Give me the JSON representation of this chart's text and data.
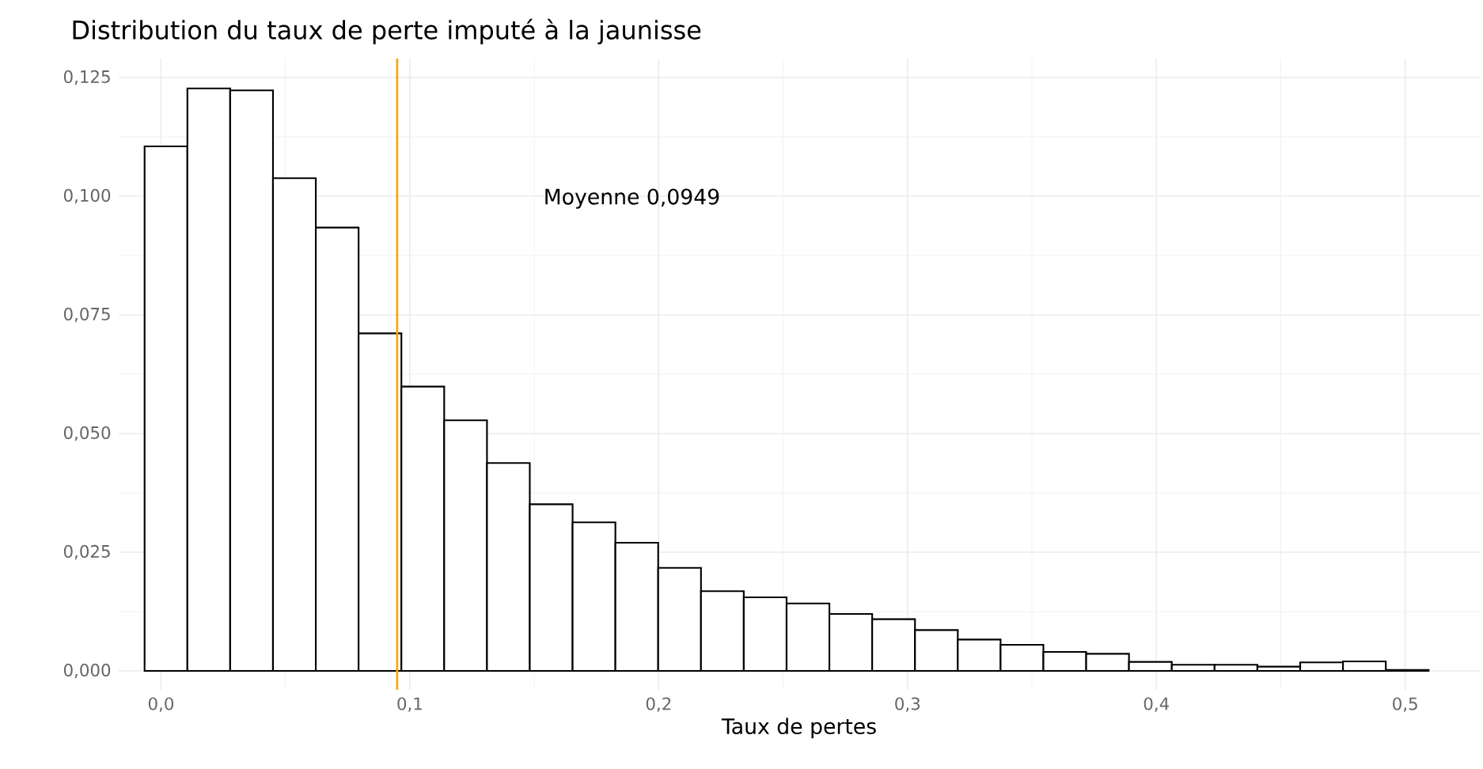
{
  "chart_data": {
    "type": "histogram",
    "title": "Distribution du taux de perte imputé à la jaunisse",
    "xlabel": "Taux de pertes",
    "bins": [
      -0.0066,
      0.0106,
      0.0278,
      0.045,
      0.0622,
      0.0794,
      0.0966,
      0.1138,
      0.131,
      0.1482,
      0.1654,
      0.1826,
      0.1998,
      0.217,
      0.2342,
      0.2514,
      0.2686,
      0.2858,
      0.303,
      0.3202,
      0.3374,
      0.3546,
      0.3718,
      0.389,
      0.4062,
      0.4234,
      0.4406,
      0.4578,
      0.475,
      0.4922,
      0.5094
    ],
    "values": [
      0.1105,
      0.1227,
      0.1223,
      0.1038,
      0.0934,
      0.0711,
      0.0599,
      0.0528,
      0.0438,
      0.0351,
      0.0313,
      0.027,
      0.0217,
      0.0168,
      0.0155,
      0.0142,
      0.012,
      0.0109,
      0.0086,
      0.0066,
      0.0055,
      0.004,
      0.0036,
      0.0019,
      0.0013,
      0.0013,
      0.0009,
      0.0018,
      0.002,
      0.0002
    ],
    "color": "#ffffff",
    "xlim": [
      -0.017,
      0.53
    ],
    "ylim": [
      -0.004,
      0.129
    ],
    "xticks": [
      {
        "value": 0,
        "label": "0,0"
      },
      {
        "value": 0.1,
        "label": "0,1"
      },
      {
        "value": 0.2,
        "label": "0,2"
      },
      {
        "value": 0.3,
        "label": "0,3"
      },
      {
        "value": 0.4,
        "label": "0,4"
      },
      {
        "value": 0.5,
        "label": "0,5"
      }
    ],
    "yticks": [
      {
        "value": 0,
        "label": "0,000"
      },
      {
        "value": 0.025,
        "label": "0,025"
      },
      {
        "value": 0.05,
        "label": "0,050"
      },
      {
        "value": 0.075,
        "label": "0,075"
      },
      {
        "value": 0.1,
        "label": "0,100"
      },
      {
        "value": 0.125,
        "label": "0,125"
      }
    ],
    "grid": true,
    "ref_lines": [
      {
        "axis": "x",
        "value": 0.0949,
        "color": "#ffa500"
      }
    ],
    "annotations": [
      "Moyenne 0,0949"
    ]
  }
}
